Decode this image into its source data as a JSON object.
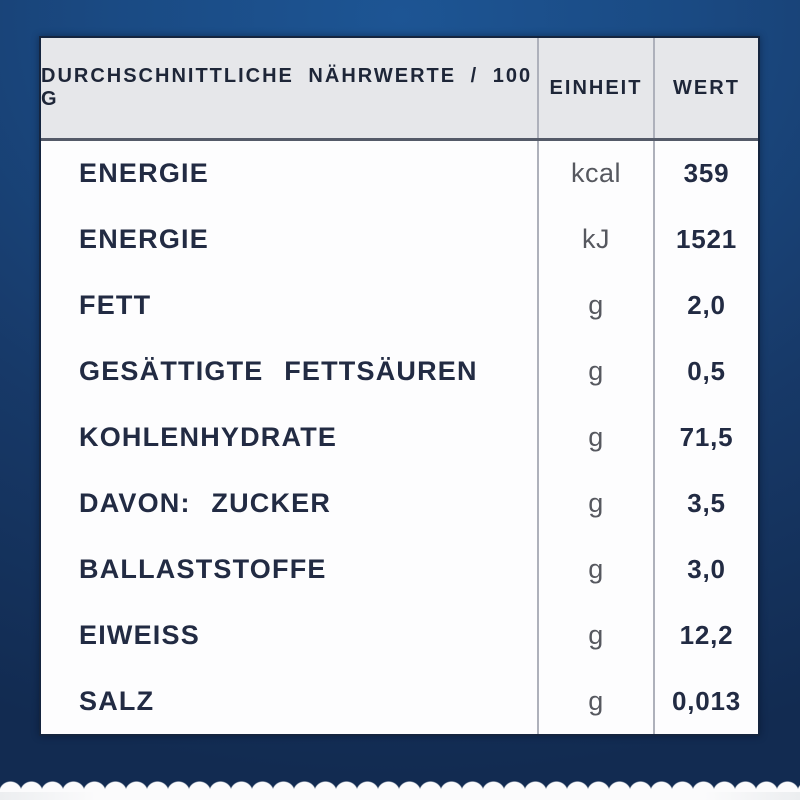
{
  "table": {
    "header": {
      "label": "DURCHSCHNITTLICHE  NÄHRWERTE / 100 G",
      "unit": "EINHEIT",
      "value": "WERT"
    },
    "rows": [
      {
        "label": "ENERGIE",
        "unit": "kcal",
        "value": "359"
      },
      {
        "label": "ENERGIE",
        "unit": "kJ",
        "value": "1521"
      },
      {
        "label": "FETT",
        "unit": "g",
        "value": "2,0"
      },
      {
        "label": "GESÄTTIGTE  FETTSÄUREN",
        "unit": "g",
        "value": "0,5"
      },
      {
        "label": "KOHLENHYDRATE",
        "unit": "g",
        "value": "71,5"
      },
      {
        "label": "DAVON:  ZUCKER",
        "unit": "g",
        "value": "3,5"
      },
      {
        "label": "BALLASTSTOFFE",
        "unit": "g",
        "value": "3,0"
      },
      {
        "label": "EIWEISS",
        "unit": "g",
        "value": "12,2"
      },
      {
        "label": "SALZ",
        "unit": "g",
        "value": "0,013"
      }
    ]
  },
  "colors": {
    "background_top": "#1d5594",
    "background_bottom": "#122b51",
    "table_background": "#fdfdfe",
    "header_background": "#e6e7ea",
    "text_navy": "#222b43",
    "unit_gray": "#56585f",
    "divider_gray": "#aeb1bb",
    "edge_white": "#fbfbfc"
  }
}
